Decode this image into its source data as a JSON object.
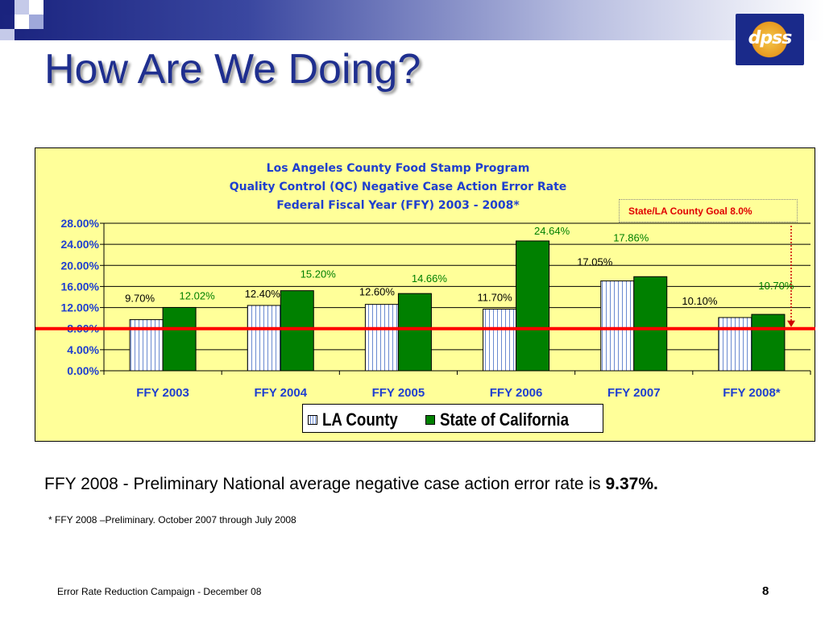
{
  "slide": {
    "title": "How Are We Doing?",
    "logo_text": "dpss",
    "note_prefix": "FFY 2008 - Preliminary National average negative case action error rate is ",
    "note_value": "9.37%.",
    "footnote": "*   FFY 2008 –Preliminary. October 2007 through July  2008",
    "footer": "Error Rate Reduction  Campaign -  December  08",
    "page_number": "8"
  },
  "colors": {
    "chart_background": "#ffff99",
    "la_county": "#ffffff",
    "la_county_stripe": "#6a8ad0",
    "state_of_california": "#008000",
    "goal_line": "#ff0000",
    "title_blue": "#1f3fcf"
  },
  "chart_data": {
    "type": "bar",
    "title_lines": [
      "Los Angeles County Food Stamp Program",
      "Quality Control (QC) Negative Case Action Error Rate",
      "Federal Fiscal Year (FFY) 2003 - 2008*"
    ],
    "categories": [
      "FFY 2003",
      "FFY 2004",
      "FFY 2005",
      "FFY 2006",
      "FFY 2007",
      "FFY 2008*"
    ],
    "series": [
      {
        "name": "LA County",
        "values": [
          9.7,
          12.4,
          12.6,
          11.7,
          17.05,
          10.1
        ],
        "labels": [
          "9.70%",
          "12.40%",
          "12.60%",
          "11.70%",
          "17.05%",
          "10.10%"
        ]
      },
      {
        "name": "State of California",
        "values": [
          12.02,
          15.2,
          14.66,
          24.64,
          17.86,
          10.7
        ],
        "labels": [
          "12.02%",
          "15.20%",
          "14.66%",
          "24.64%",
          "17.86%",
          "10.70%"
        ]
      }
    ],
    "y_ticks": [
      "0.00%",
      "4.00%",
      "8.00%",
      "12.00%",
      "16.00%",
      "20.00%",
      "24.00%",
      "28.00%"
    ],
    "ylim": [
      0,
      28
    ],
    "goal": {
      "value": 8.0,
      "label": "State/LA County Goal  8.0%"
    },
    "legend_placement": "bottom",
    "grid": true
  }
}
